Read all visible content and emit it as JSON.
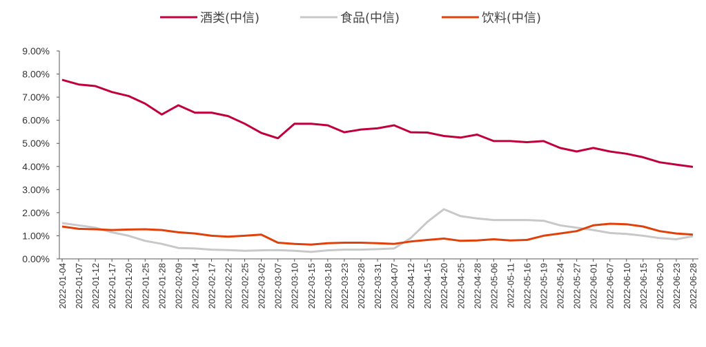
{
  "chart_data": {
    "type": "line",
    "title": "",
    "xlabel": "",
    "ylabel": "",
    "ylim": [
      0,
      0.09
    ],
    "yticks": [
      "0.00%",
      "1.00%",
      "2.00%",
      "3.00%",
      "4.00%",
      "5.00%",
      "6.00%",
      "7.00%",
      "8.00%",
      "9.00%"
    ],
    "grid": false,
    "legend_position": "top-center",
    "x": [
      "2022-01-04",
      "2022-01-07",
      "2022-01-12",
      "2022-01-17",
      "2022-01-20",
      "2022-01-25",
      "2022-01-28",
      "2022-02-09",
      "2022-02-14",
      "2022-02-17",
      "2022-02-22",
      "2022-02-25",
      "2022-03-02",
      "2022-03-07",
      "2022-03-10",
      "2022-03-15",
      "2022-03-18",
      "2022-03-23",
      "2022-03-28",
      "2022-03-31",
      "2022-04-07",
      "2022-04-12",
      "2022-04-15",
      "2022-04-20",
      "2022-04-25",
      "2022-04-28",
      "2022-05-06",
      "2022-05-11",
      "2022-05-16",
      "2022-05-19",
      "2022-05-24",
      "2022-05-27",
      "2022-06-01",
      "2022-06-07",
      "2022-06-10",
      "2022-06-15",
      "2022-06-20",
      "2022-06-23",
      "2022-06-28"
    ],
    "series": [
      {
        "name": "酒类(中信)",
        "color": "#C0003C",
        "values": [
          0.0775,
          0.0755,
          0.0748,
          0.0722,
          0.0705,
          0.0672,
          0.0625,
          0.0665,
          0.0633,
          0.0633,
          0.0618,
          0.0585,
          0.0545,
          0.0522,
          0.0585,
          0.0585,
          0.0578,
          0.0548,
          0.056,
          0.0565,
          0.0578,
          0.0548,
          0.0547,
          0.0532,
          0.0525,
          0.0538,
          0.051,
          0.051,
          0.0505,
          0.051,
          0.048,
          0.0465,
          0.048,
          0.0465,
          0.0455,
          0.044,
          0.0418,
          0.0408,
          0.0398
        ]
      },
      {
        "name": "食品(中信)",
        "color": "#C8C8C8",
        "values": [
          0.0155,
          0.0145,
          0.0135,
          0.0115,
          0.01,
          0.0078,
          0.0065,
          0.0047,
          0.0045,
          0.004,
          0.0038,
          0.0035,
          0.0037,
          0.0038,
          0.0035,
          0.003,
          0.0037,
          0.004,
          0.004,
          0.0042,
          0.0045,
          0.009,
          0.016,
          0.0215,
          0.0185,
          0.0175,
          0.0168,
          0.0168,
          0.0168,
          0.0165,
          0.0145,
          0.0135,
          0.0125,
          0.0112,
          0.0108,
          0.01,
          0.009,
          0.0085,
          0.0098
        ]
      },
      {
        "name": "饮料(中信)",
        "color": "#E0400A",
        "values": [
          0.014,
          0.013,
          0.0128,
          0.0125,
          0.0127,
          0.0128,
          0.0125,
          0.0115,
          0.011,
          0.01,
          0.0096,
          0.01,
          0.0105,
          0.007,
          0.0065,
          0.0062,
          0.0068,
          0.007,
          0.007,
          0.0068,
          0.0065,
          0.0075,
          0.0082,
          0.0088,
          0.0078,
          0.008,
          0.0085,
          0.008,
          0.0082,
          0.01,
          0.011,
          0.012,
          0.0145,
          0.0152,
          0.015,
          0.014,
          0.012,
          0.011,
          0.0105
        ]
      }
    ]
  }
}
